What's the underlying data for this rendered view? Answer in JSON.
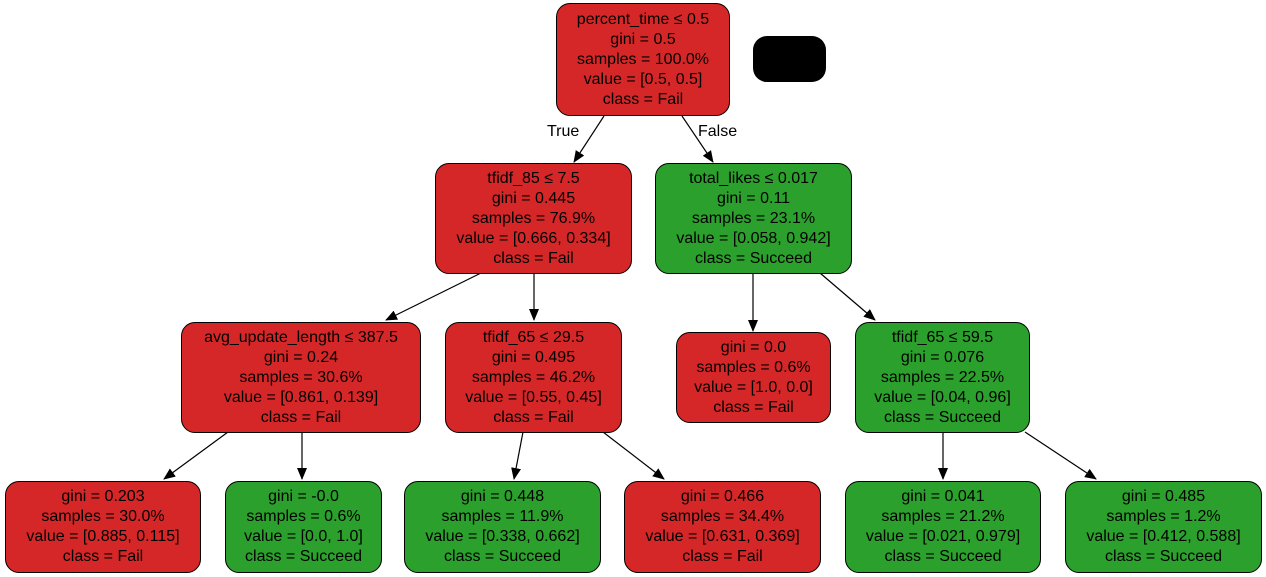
{
  "nodes": {
    "root": {
      "split": "percent_time ≤ 0.5",
      "gini": "gini = 0.5",
      "samples": "samples = 100.0%",
      "value": "value = [0.5, 0.5]",
      "class": "class = Fail",
      "color": "#d62728"
    },
    "l1": {
      "split": "tfidf_85 ≤ 7.5",
      "gini": "gini = 0.445",
      "samples": "samples = 76.9%",
      "value": "value = [0.666, 0.334]",
      "class": "class = Fail",
      "color": "#d62728"
    },
    "r1": {
      "split": "total_likes ≤ 0.017",
      "gini": "gini = 0.11",
      "samples": "samples = 23.1%",
      "value": "value = [0.058, 0.942]",
      "class": "class = Succeed",
      "color": "#2ca02c"
    },
    "ll2": {
      "split": "avg_update_length ≤ 387.5",
      "gini": "gini = 0.24",
      "samples": "samples = 30.6%",
      "value": "value = [0.861, 0.139]",
      "class": "class = Fail",
      "color": "#d62728"
    },
    "lr2": {
      "split": "tfidf_65 ≤ 29.5",
      "gini": "gini = 0.495",
      "samples": "samples = 46.2%",
      "value": "value = [0.55, 0.45]",
      "class": "class = Fail",
      "color": "#d62728"
    },
    "rl2": {
      "gini": "gini = 0.0",
      "samples": "samples = 0.6%",
      "value": "value = [1.0, 0.0]",
      "class": "class = Fail",
      "color": "#d62728"
    },
    "rr2": {
      "split": "tfidf_65 ≤ 59.5",
      "gini": "gini = 0.076",
      "samples": "samples = 22.5%",
      "value": "value = [0.04, 0.96]",
      "class": "class = Succeed",
      "color": "#2ca02c"
    },
    "leaf1": {
      "gini": "gini = 0.203",
      "samples": "samples = 30.0%",
      "value": "value = [0.885, 0.115]",
      "class": "class = Fail",
      "color": "#d62728"
    },
    "leaf2": {
      "gini": "gini = -0.0",
      "samples": "samples = 0.6%",
      "value": "value = [0.0, 1.0]",
      "class": "class = Succeed",
      "color": "#2ca02c"
    },
    "leaf3": {
      "gini": "gini = 0.448",
      "samples": "samples = 11.9%",
      "value": "value = [0.338, 0.662]",
      "class": "class = Succeed",
      "color": "#2ca02c"
    },
    "leaf4": {
      "gini": "gini = 0.466",
      "samples": "samples = 34.4%",
      "value": "value = [0.631, 0.369]",
      "class": "class = Fail",
      "color": "#d62728"
    },
    "leaf5": {
      "gini": "gini = 0.041",
      "samples": "samples = 21.2%",
      "value": "value = [0.021, 0.979]",
      "class": "class = Succeed",
      "color": "#2ca02c"
    },
    "leaf6": {
      "gini": "gini = 0.485",
      "samples": "samples = 1.2%",
      "value": "value = [0.412, 0.588]",
      "class": "class = Succeed",
      "color": "#2ca02c"
    }
  },
  "edge_labels": {
    "true": "True",
    "false": "False"
  },
  "colors": {
    "fail": "#d62728",
    "succeed": "#2ca02c",
    "redaction": "#000000"
  }
}
